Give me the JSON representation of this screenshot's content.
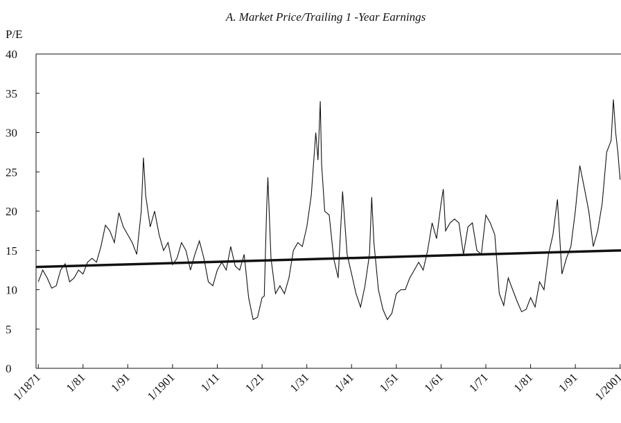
{
  "chart_data": {
    "type": "line",
    "title": "A. Market Price/Trailing 1 -Year Earnings",
    "y_label": "P/E",
    "x": [
      1871,
      1872,
      1873,
      1874,
      1875,
      1876,
      1877,
      1878,
      1879,
      1880,
      1881,
      1882,
      1883,
      1884,
      1885,
      1886,
      1887,
      1888,
      1889,
      1890,
      1891,
      1892,
      1893,
      1894,
      1894.5,
      1895,
      1896,
      1897,
      1898,
      1899,
      1900,
      1901,
      1902,
      1903,
      1904,
      1905,
      1906,
      1907,
      1908,
      1909,
      1910,
      1911,
      1912,
      1913,
      1914,
      1915,
      1916,
      1917,
      1918,
      1919,
      1920,
      1921,
      1921.5,
      1922,
      1922.3,
      1923,
      1924,
      1925,
      1926,
      1927,
      1928,
      1929,
      1930,
      1931,
      1932,
      1933,
      1933.5,
      1934,
      1934.3,
      1935,
      1936,
      1937,
      1938,
      1939,
      1940,
      1941,
      1942,
      1943,
      1944,
      1945,
      1945.5,
      1946,
      1947,
      1948,
      1949,
      1950,
      1951,
      1952,
      1953,
      1954,
      1955,
      1956,
      1957,
      1958,
      1959,
      1960,
      1961,
      1961.5,
      1962,
      1963,
      1964,
      1965,
      1966,
      1967,
      1968,
      1969,
      1970,
      1971,
      1972,
      1973,
      1974,
      1975,
      1976,
      1977,
      1978,
      1979,
      1980,
      1981,
      1982,
      1983,
      1984,
      1985,
      1986,
      1987,
      1988,
      1989,
      1990,
      1991,
      1992,
      1993,
      1994,
      1995,
      1996,
      1997,
      1998,
      1999,
      1999.5,
      2000,
      2000.5,
      2001
    ],
    "values": [
      11,
      12.5,
      11.5,
      10.2,
      10.5,
      12.5,
      13.3,
      11,
      11.5,
      12.5,
      12,
      13.5,
      14,
      13.5,
      15.5,
      18.2,
      17.5,
      16,
      19.8,
      18,
      17,
      16,
      14.5,
      20,
      26.8,
      22,
      18,
      20,
      17,
      15,
      16,
      13.2,
      14,
      16,
      15,
      12.5,
      14.5,
      16.2,
      14,
      11,
      10.5,
      12.5,
      13.5,
      12.5,
      15.5,
      13,
      12.5,
      14.5,
      9,
      6.2,
      6.5,
      9,
      9.2,
      20,
      24.3,
      14,
      9.5,
      10.5,
      9.5,
      11.5,
      15,
      16,
      15.5,
      18,
      22,
      30,
      26.5,
      34,
      26,
      20,
      19.5,
      14,
      11.5,
      22.5,
      14.5,
      12,
      9.5,
      7.8,
      10.5,
      14.5,
      21.8,
      16,
      10,
      7.5,
      6.2,
      7,
      9.5,
      10,
      10,
      11.5,
      12.5,
      13.5,
      12.5,
      15,
      18.5,
      16.5,
      21,
      22.8,
      17.5,
      18.5,
      19,
      18.5,
      14.5,
      18,
      18.5,
      15,
      14.5,
      19.5,
      18.5,
      17,
      9.5,
      8,
      11.5,
      10,
      8.5,
      7.2,
      7.5,
      9,
      7.8,
      11,
      10,
      14.5,
      17,
      21.5,
      12,
      14,
      15.5,
      20,
      25.8,
      23,
      20,
      15.5,
      17.5,
      21,
      27.5,
      29,
      34.2,
      30,
      27.5,
      24
    ],
    "trend_line": {
      "x": [
        1870.5,
        2001.2
      ],
      "values": [
        12.9,
        15.0
      ]
    },
    "color": "#111111",
    "xlim": [
      1870.5,
      2001.2
    ],
    "xticks": [
      {
        "value": 1871,
        "label": "1/1871"
      },
      {
        "value": 1881,
        "label": "1/81"
      },
      {
        "value": 1891,
        "label": "1/91"
      },
      {
        "value": 1901,
        "label": "1/1901"
      },
      {
        "value": 1911,
        "label": "1/11"
      },
      {
        "value": 1921,
        "label": "1/21"
      },
      {
        "value": 1931,
        "label": "1/31"
      },
      {
        "value": 1941,
        "label": "1/41"
      },
      {
        "value": 1951,
        "label": "1/51"
      },
      {
        "value": 1961,
        "label": "1/61"
      },
      {
        "value": 1971,
        "label": "1/71"
      },
      {
        "value": 1981,
        "label": "1/81"
      },
      {
        "value": 1991,
        "label": "1/91"
      },
      {
        "value": 2001,
        "label": "1/2001"
      }
    ],
    "ylim": [
      0,
      40
    ],
    "yticks": [
      0,
      5,
      10,
      15,
      20,
      25,
      30,
      35,
      40
    ]
  }
}
